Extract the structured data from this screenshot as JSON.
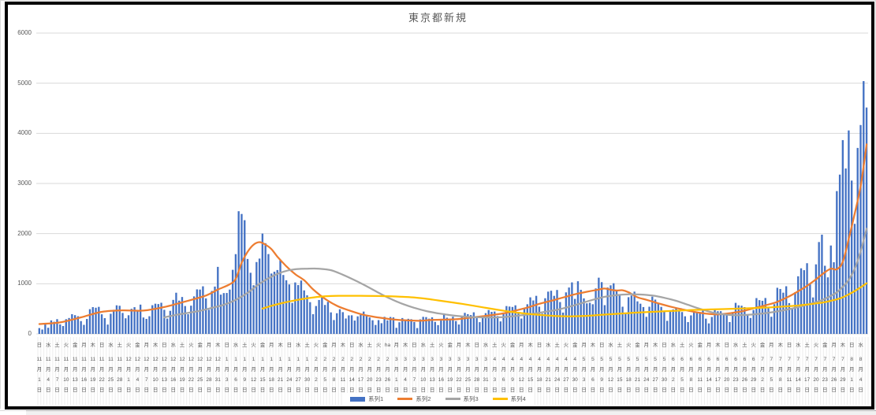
{
  "page": {
    "app_context": "spreadsheet-chart"
  },
  "legend_note": "legend rendered from chart_data.series names",
  "chart_data": {
    "type": "combo-bar-line",
    "title": "東京都新規",
    "ylabel": "",
    "xlabel": "",
    "ylim": [
      0,
      6000
    ],
    "y_ticks": [
      "0",
      "1000",
      "2000",
      "3000",
      "4000",
      "5000",
      "6000"
    ],
    "grid": "horizontal",
    "legend_position": "bottom-center",
    "x_tick_labels": [
      "日|11|1",
      "水|11|4",
      "土|11|7",
      "火|11|10",
      "金|11|13",
      "月|11|16",
      "木|11|19",
      "日|11|22",
      "水|11|25",
      "土|11|28",
      "火|12|1",
      "金|12|4",
      "月|12|7",
      "木|12|10",
      "日|12|13",
      "水|12|16",
      "土|12|19",
      "火|12|22",
      "金|12|25",
      "月|12|28",
      "木|12|31",
      "日|1|3",
      "水|1|6",
      "土|1|9",
      "火|1|12",
      "金|1|15",
      "月|1|18",
      "木|1|21",
      "日|1|24",
      "水|1|27",
      "土|1|30",
      "火|2|2",
      "金|2|5",
      "月|2|8",
      "木|2|11",
      "日|2|14",
      "水|2|17",
      "土|2|20",
      "火|2|23",
      "ha|2|26",
      "月|3|1",
      "木|3|4",
      "日|3|7",
      "水|3|10",
      "土|3|13",
      "火|3|16",
      "金|3|19",
      "月|3|22",
      "木|3|25",
      "日|3|28",
      "水|3|31",
      "土|4|3",
      "火|4|6",
      "金|4|9",
      "月|4|12",
      "木|4|15",
      "日|4|18",
      "水|4|21",
      "土|4|24",
      "火|4|27",
      "金|4|30",
      "月|5|3",
      "木|5|6",
      "日|5|9",
      "水|5|12",
      "土|5|15",
      "火|5|18",
      "金|5|21",
      "月|5|24",
      "木|5|27",
      "日|5|30",
      "水|6|2",
      "土|6|5",
      "火|6|8",
      "金|6|11",
      "月|6|14",
      "木|6|17",
      "日|6|20",
      "水|6|23",
      "土|6|26",
      "火|6|29",
      "金|7|2",
      "月|7|5",
      "木|7|8",
      "日|7|11",
      "水|7|14",
      "土|7|17",
      "火|7|20",
      "金|7|23",
      "月|7|26",
      "木|7|29",
      "日|8|1",
      "水|8|4"
    ],
    "series": [
      {
        "name": "系列1",
        "type": "bar",
        "color": "#4472C4",
        "daily_values": [
          116,
          87,
          209,
          122,
          269,
          242,
          294,
          189,
          157,
          293,
          317,
          393,
          374,
          352,
          255,
          180,
          298,
          493,
          534,
          522,
          539,
          391,
          314,
          186,
          401,
          481,
          570,
          561,
          418,
          311,
          372,
          500,
          533,
          449,
          584,
          327,
          299,
          352,
          572,
          602,
          595,
          621,
          480,
          305,
          460,
          678,
          821,
          664,
          736,
          556,
          392,
          563,
          748,
          888,
          884,
          949,
          708,
          481,
          856,
          944,
          1337,
          783,
          814,
          816,
          884,
          1278,
          1591,
          2447,
          2392,
          2268,
          1494,
          1219,
          970,
          1433,
          1502,
          2001,
          1809,
          1592,
          1204,
          1240,
          1274,
          1471,
          1175,
          1070,
          986,
          618,
          1026,
          973,
          1064,
          868,
          769,
          633,
          393,
          556,
          676,
          734,
          577,
          639,
          429,
          276,
          412,
          491,
          434,
          307,
          369,
          371,
          266,
          350,
          378,
          445,
          353,
          327,
          272,
          178,
          275,
          213,
          340,
          270,
          337,
          329,
          121,
          232,
          316,
          279,
          301,
          293,
          237,
          116,
          290,
          340,
          335,
          304,
          330,
          239,
          175,
          300,
          409,
          323,
          303,
          342,
          256,
          187,
          337,
          420,
          394,
          376,
          430,
          313,
          234,
          364,
          414,
          475,
          440,
          446,
          355,
          249,
          399,
          555,
          545,
          537,
          570,
          421,
          306,
          510,
          591,
          729,
          667,
          759,
          543,
          405,
          711,
          843,
          861,
          759,
          876,
          635,
          425,
          828,
          925,
          1027,
          698,
          1050,
          879,
          708,
          609,
          621,
          591,
          907,
          1121,
          1032,
          573,
          925,
          969,
          1010,
          854,
          772,
          542,
          419,
          732,
          766,
          843,
          649,
          602,
          535,
          340,
          542,
          743,
          684,
          614,
          539,
          448,
          260,
          471,
          487,
          508,
          472,
          436,
          351,
          235,
          369,
          440,
          439,
          435,
          467,
          304,
          209,
          337,
          501,
          452,
          453,
          388,
          376,
          236,
          435,
          619,
          570,
          562,
          534,
          386,
          317,
          476,
          714,
          673,
          660,
          716,
          518,
          342,
          593,
          920,
          896,
          822,
          950,
          614,
          502,
          830,
          1149,
          1308,
          1271,
          1410,
          1008,
          727,
          1387,
          1832,
          1979,
          1359,
          1128,
          1763,
          1429,
          2848,
          3177,
          3865,
          3300,
          4058,
          3058,
          2195,
          3709,
          4166,
          5042,
          4515
        ]
      },
      {
        "name": "系列2",
        "type": "line",
        "color": "#ED7D31",
        "points": [
          [
            0,
            196
          ],
          [
            7,
            230
          ],
          [
            14,
            330
          ],
          [
            21,
            440
          ],
          [
            28,
            470
          ],
          [
            35,
            465
          ],
          [
            42,
            535
          ],
          [
            49,
            645
          ],
          [
            56,
            765
          ],
          [
            60,
            885
          ],
          [
            64,
            990
          ],
          [
            66,
            1100
          ],
          [
            68,
            1420
          ],
          [
            70,
            1640
          ],
          [
            72,
            1780
          ],
          [
            74,
            1830
          ],
          [
            76,
            1780
          ],
          [
            78,
            1690
          ],
          [
            80,
            1540
          ],
          [
            83,
            1350
          ],
          [
            86,
            1190
          ],
          [
            89,
            1070
          ],
          [
            92,
            888
          ],
          [
            96,
            700
          ],
          [
            100,
            560
          ],
          [
            104,
            470
          ],
          [
            108,
            395
          ],
          [
            112,
            345
          ],
          [
            116,
            310
          ],
          [
            120,
            282
          ],
          [
            124,
            268
          ],
          [
            128,
            262
          ],
          [
            132,
            278
          ],
          [
            136,
            285
          ],
          [
            140,
            292
          ],
          [
            144,
            318
          ],
          [
            148,
            345
          ],
          [
            152,
            375
          ],
          [
            156,
            410
          ],
          [
            160,
            465
          ],
          [
            164,
            525
          ],
          [
            168,
            600
          ],
          [
            172,
            660
          ],
          [
            176,
            725
          ],
          [
            180,
            790
          ],
          [
            184,
            840
          ],
          [
            188,
            885
          ],
          [
            190,
            905
          ],
          [
            192,
            880
          ],
          [
            194,
            865
          ],
          [
            196,
            870
          ],
          [
            198,
            830
          ],
          [
            201,
            730
          ],
          [
            204,
            680
          ],
          [
            208,
            610
          ],
          [
            212,
            545
          ],
          [
            216,
            490
          ],
          [
            220,
            440
          ],
          [
            224,
            405
          ],
          [
            228,
            390
          ],
          [
            232,
            412
          ],
          [
            236,
            450
          ],
          [
            240,
            510
          ],
          [
            244,
            570
          ],
          [
            248,
            640
          ],
          [
            252,
            750
          ],
          [
            255,
            850
          ],
          [
            258,
            960
          ],
          [
            261,
            1090
          ],
          [
            264,
            1230
          ],
          [
            266,
            1300
          ],
          [
            268,
            1290
          ],
          [
            270,
            1440
          ],
          [
            272,
            1900
          ],
          [
            274,
            2400
          ],
          [
            276,
            2950
          ],
          [
            278,
            3780
          ]
        ]
      },
      {
        "name": "系列3",
        "type": "line",
        "color": "#A5A5A5",
        "points": [
          [
            42,
            330
          ],
          [
            46,
            380
          ],
          [
            50,
            420
          ],
          [
            54,
            460
          ],
          [
            58,
            520
          ],
          [
            62,
            580
          ],
          [
            66,
            680
          ],
          [
            70,
            820
          ],
          [
            74,
            1000
          ],
          [
            78,
            1140
          ],
          [
            82,
            1240
          ],
          [
            86,
            1290
          ],
          [
            90,
            1300
          ],
          [
            94,
            1300
          ],
          [
            98,
            1270
          ],
          [
            102,
            1180
          ],
          [
            106,
            1070
          ],
          [
            110,
            950
          ],
          [
            114,
            820
          ],
          [
            118,
            700
          ],
          [
            122,
            600
          ],
          [
            126,
            520
          ],
          [
            130,
            455
          ],
          [
            134,
            410
          ],
          [
            138,
            375
          ],
          [
            142,
            350
          ],
          [
            146,
            335
          ],
          [
            150,
            328
          ],
          [
            154,
            330
          ],
          [
            158,
            345
          ],
          [
            162,
            370
          ],
          [
            166,
            400
          ],
          [
            170,
            440
          ],
          [
            174,
            480
          ],
          [
            178,
            540
          ],
          [
            182,
            610
          ],
          [
            186,
            680
          ],
          [
            190,
            740
          ],
          [
            194,
            775
          ],
          [
            198,
            790
          ],
          [
            202,
            785
          ],
          [
            206,
            765
          ],
          [
            210,
            720
          ],
          [
            214,
            660
          ],
          [
            218,
            580
          ],
          [
            222,
            500
          ],
          [
            226,
            430
          ],
          [
            230,
            390
          ],
          [
            234,
            372
          ],
          [
            238,
            380
          ],
          [
            242,
            400
          ],
          [
            246,
            430
          ],
          [
            250,
            470
          ],
          [
            254,
            520
          ],
          [
            258,
            580
          ],
          [
            262,
            650
          ],
          [
            264,
            700
          ],
          [
            266,
            760
          ],
          [
            268,
            830
          ],
          [
            270,
            940
          ],
          [
            272,
            1080
          ],
          [
            274,
            1300
          ],
          [
            276,
            1650
          ],
          [
            278,
            2100
          ]
        ]
      },
      {
        "name": "系列4",
        "type": "line",
        "color": "#FFC000",
        "points": [
          [
            75,
            505
          ],
          [
            78,
            560
          ],
          [
            82,
            620
          ],
          [
            86,
            670
          ],
          [
            90,
            710
          ],
          [
            94,
            740
          ],
          [
            98,
            755
          ],
          [
            102,
            760
          ],
          [
            106,
            760
          ],
          [
            110,
            758
          ],
          [
            114,
            755
          ],
          [
            118,
            750
          ],
          [
            122,
            740
          ],
          [
            126,
            725
          ],
          [
            130,
            700
          ],
          [
            134,
            668
          ],
          [
            138,
            635
          ],
          [
            142,
            600
          ],
          [
            146,
            560
          ],
          [
            150,
            520
          ],
          [
            154,
            480
          ],
          [
            158,
            445
          ],
          [
            162,
            415
          ],
          [
            166,
            390
          ],
          [
            170,
            370
          ],
          [
            174,
            355
          ],
          [
            178,
            350
          ],
          [
            182,
            355
          ],
          [
            186,
            368
          ],
          [
            190,
            385
          ],
          [
            194,
            400
          ],
          [
            198,
            415
          ],
          [
            202,
            428
          ],
          [
            206,
            440
          ],
          [
            210,
            452
          ],
          [
            214,
            462
          ],
          [
            218,
            472
          ],
          [
            222,
            480
          ],
          [
            226,
            488
          ],
          [
            230,
            495
          ],
          [
            234,
            502
          ],
          [
            238,
            510
          ],
          [
            242,
            520
          ],
          [
            246,
            530
          ],
          [
            250,
            545
          ],
          [
            254,
            562
          ],
          [
            258,
            585
          ],
          [
            262,
            615
          ],
          [
            264,
            635
          ],
          [
            266,
            660
          ],
          [
            268,
            690
          ],
          [
            270,
            730
          ],
          [
            272,
            790
          ],
          [
            274,
            855
          ],
          [
            276,
            930
          ],
          [
            278,
            1010
          ]
        ]
      }
    ],
    "axis_text": {
      "month_suffix": "月",
      "day_suffix": "日"
    },
    "colors": {
      "gridline": "#D9D9D9",
      "axis_text": "#595959",
      "chart_border": "#000000"
    }
  }
}
